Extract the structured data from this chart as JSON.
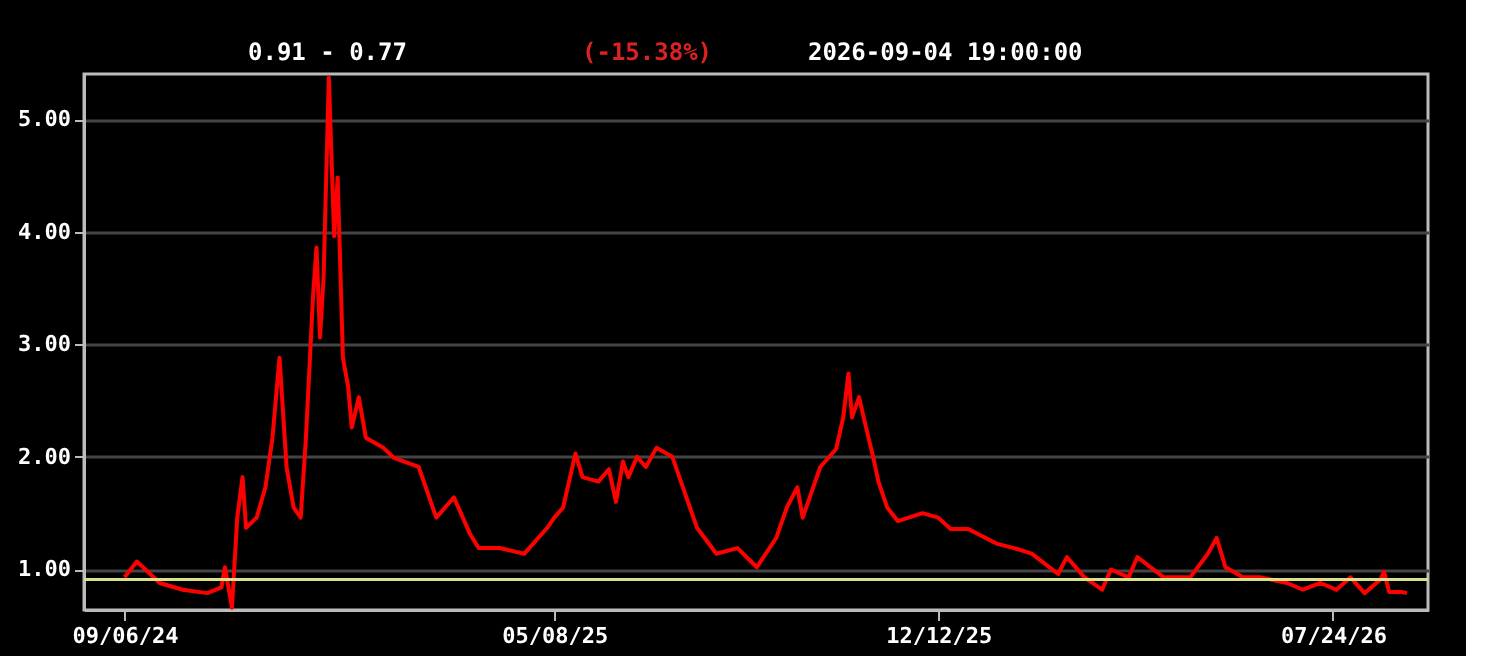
{
  "chart_data": {
    "type": "line",
    "annotations": [
      "0.91 - 0.77",
      "(-15.38%)",
      "2026-09-04  19:00:00"
    ],
    "x": [
      "2024-09-06",
      "2024-09-13",
      "2024-09-26",
      "2024-10-09",
      "2024-10-23",
      "2024-10-31",
      "2024-11-02",
      "2024-11-06",
      "2024-11-09",
      "2024-11-12",
      "2024-11-14",
      "2024-11-20",
      "2024-11-25",
      "2024-11-29",
      "2024-12-03",
      "2024-12-07",
      "2024-12-11",
      "2024-12-15",
      "2024-12-18",
      "2024-12-22",
      "2024-12-24",
      "2024-12-26",
      "2024-12-28",
      "2024-12-31",
      "2025-01-03",
      "2025-01-05",
      "2025-01-08",
      "2025-01-11",
      "2025-01-13",
      "2025-01-17",
      "2025-01-21",
      "2025-01-31",
      "2025-02-06",
      "2025-02-20",
      "2025-03-02",
      "2025-03-12",
      "2025-03-21",
      "2025-03-26",
      "2025-04-07",
      "2025-04-21",
      "2025-05-04",
      "2025-05-08",
      "2025-05-13",
      "2025-05-20",
      "2025-05-24",
      "2025-06-02",
      "2025-06-08",
      "2025-06-12",
      "2025-06-16",
      "2025-06-19",
      "2025-06-24",
      "2025-06-29",
      "2025-07-05",
      "2025-07-14",
      "2025-07-22",
      "2025-07-28",
      "2025-08-08",
      "2025-08-20",
      "2025-08-31",
      "2025-09-11",
      "2025-09-17",
      "2025-09-23",
      "2025-09-26",
      "2025-10-06",
      "2025-10-15",
      "2025-10-19",
      "2025-10-22",
      "2025-10-24",
      "2025-10-28",
      "2025-11-01",
      "2025-11-05",
      "2025-11-08",
      "2025-11-13",
      "2025-11-19",
      "2025-12-03",
      "2025-12-12",
      "2025-12-19",
      "2025-12-29",
      "2026-01-14",
      "2026-01-24",
      "2026-02-03",
      "2026-02-13",
      "2026-02-18",
      "2026-02-23",
      "2026-03-05",
      "2026-03-15",
      "2026-03-20",
      "2026-03-30",
      "2026-04-04",
      "2026-04-19",
      "2026-05-04",
      "2026-05-14",
      "2026-05-19",
      "2026-05-24",
      "2026-06-03",
      "2026-06-13",
      "2026-06-28",
      "2026-07-07",
      "2026-07-17",
      "2026-07-26",
      "2026-08-03",
      "2026-08-11",
      "2026-08-20",
      "2026-08-22",
      "2026-08-25",
      "2026-09-01",
      "2026-09-04"
    ],
    "series": [
      {
        "color": "#ff0000",
        "values": [
          0.93,
          1.07,
          0.88,
          0.82,
          0.79,
          0.84,
          1.02,
          0.66,
          1.46,
          1.82,
          1.37,
          1.46,
          1.73,
          2.17,
          2.88,
          1.91,
          1.55,
          1.46,
          2.17,
          3.42,
          3.86,
          3.06,
          3.59,
          5.37,
          3.96,
          4.48,
          2.88,
          2.62,
          2.26,
          2.53,
          2.17,
          2.08,
          1.99,
          1.91,
          1.46,
          1.64,
          1.32,
          1.19,
          1.19,
          1.14,
          1.37,
          1.46,
          1.55,
          2.03,
          1.82,
          1.78,
          1.89,
          1.6,
          1.96,
          1.82,
          2.0,
          1.91,
          2.08,
          2.0,
          1.64,
          1.37,
          1.14,
          1.19,
          1.02,
          1.28,
          1.55,
          1.73,
          1.46,
          1.91,
          2.07,
          2.35,
          2.74,
          2.35,
          2.53,
          2.26,
          2.0,
          1.78,
          1.55,
          1.43,
          1.5,
          1.46,
          1.36,
          1.36,
          1.23,
          1.19,
          1.14,
          1.02,
          0.96,
          1.11,
          0.93,
          0.82,
          1.0,
          0.93,
          1.11,
          0.93,
          0.93,
          1.14,
          1.28,
          1.02,
          0.93,
          0.93,
          0.88,
          0.82,
          0.88,
          0.82,
          0.93,
          0.79,
          0.91,
          0.98,
          0.8,
          0.8,
          0.79
        ]
      }
    ],
    "ref_lines": [
      {
        "axis": "y",
        "value": 0.91,
        "color": "#d8e08a"
      }
    ],
    "xlim": [
      "2024-08-14",
      "2026-09-16"
    ],
    "xticks": [
      {
        "value": "2024-09-06",
        "label": "09/06/24"
      },
      {
        "value": "2025-05-08",
        "label": "05/08/25"
      },
      {
        "value": "2025-12-12",
        "label": "12/12/25"
      },
      {
        "value": "2026-07-24",
        "label": "07/24/26"
      }
    ],
    "ylim": [
      0.64,
      5.4
    ],
    "yticks": [
      {
        "value": 1,
        "label": "1.00"
      },
      {
        "value": 2,
        "label": "2.00"
      },
      {
        "value": 3,
        "label": "3.00"
      },
      {
        "value": 4,
        "label": "4.00"
      },
      {
        "value": 5,
        "label": "5.00"
      }
    ],
    "grid": "y"
  }
}
